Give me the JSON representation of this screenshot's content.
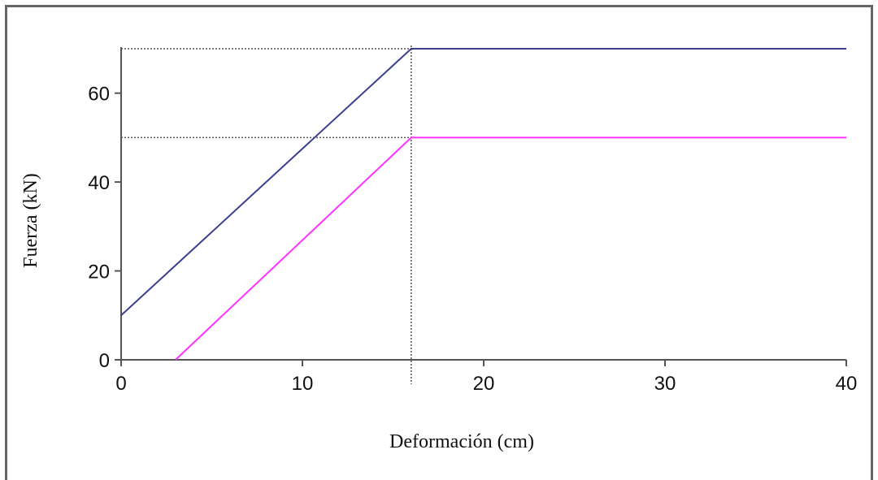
{
  "chart_data": {
    "type": "line",
    "xlabel": "Deformación (cm)",
    "ylabel": "Fuerza (kN)",
    "xlim": [
      0,
      40
    ],
    "ylim": [
      0,
      70
    ],
    "x_ticks": [
      0,
      10,
      20,
      30,
      40
    ],
    "y_ticks": [
      0,
      20,
      40,
      60
    ],
    "grid": false,
    "series": [
      {
        "color": "#3b3f8f",
        "x": [
          0,
          16,
          40
        ],
        "y": [
          10,
          70,
          70
        ]
      },
      {
        "color": "#ff33ff",
        "x": [
          3,
          16,
          40
        ],
        "y": [
          0,
          50,
          50
        ]
      }
    ],
    "reference_lines": [
      {
        "orientation": "horizontal",
        "value": 70,
        "to_x": 16
      },
      {
        "orientation": "horizontal",
        "value": 50,
        "to_x": 16
      },
      {
        "orientation": "vertical",
        "value": 16,
        "from_y": 70
      }
    ]
  }
}
